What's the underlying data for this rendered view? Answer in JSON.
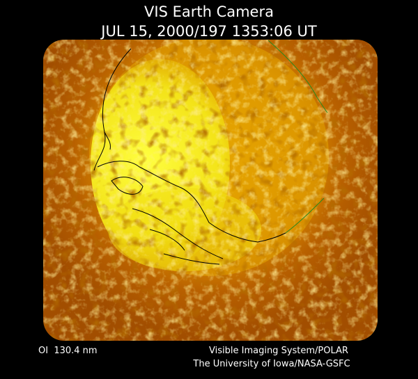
{
  "header": {
    "title": "VIS Earth Camera",
    "timestamp": "JUL 15, 2000/197 1353:06 UT"
  },
  "footer": {
    "wavelength": "OI  130.4 nm",
    "instrument": "Visible Imaging System/POLAR",
    "institution": "The University of Iowa/NASA-GSFC"
  }
}
